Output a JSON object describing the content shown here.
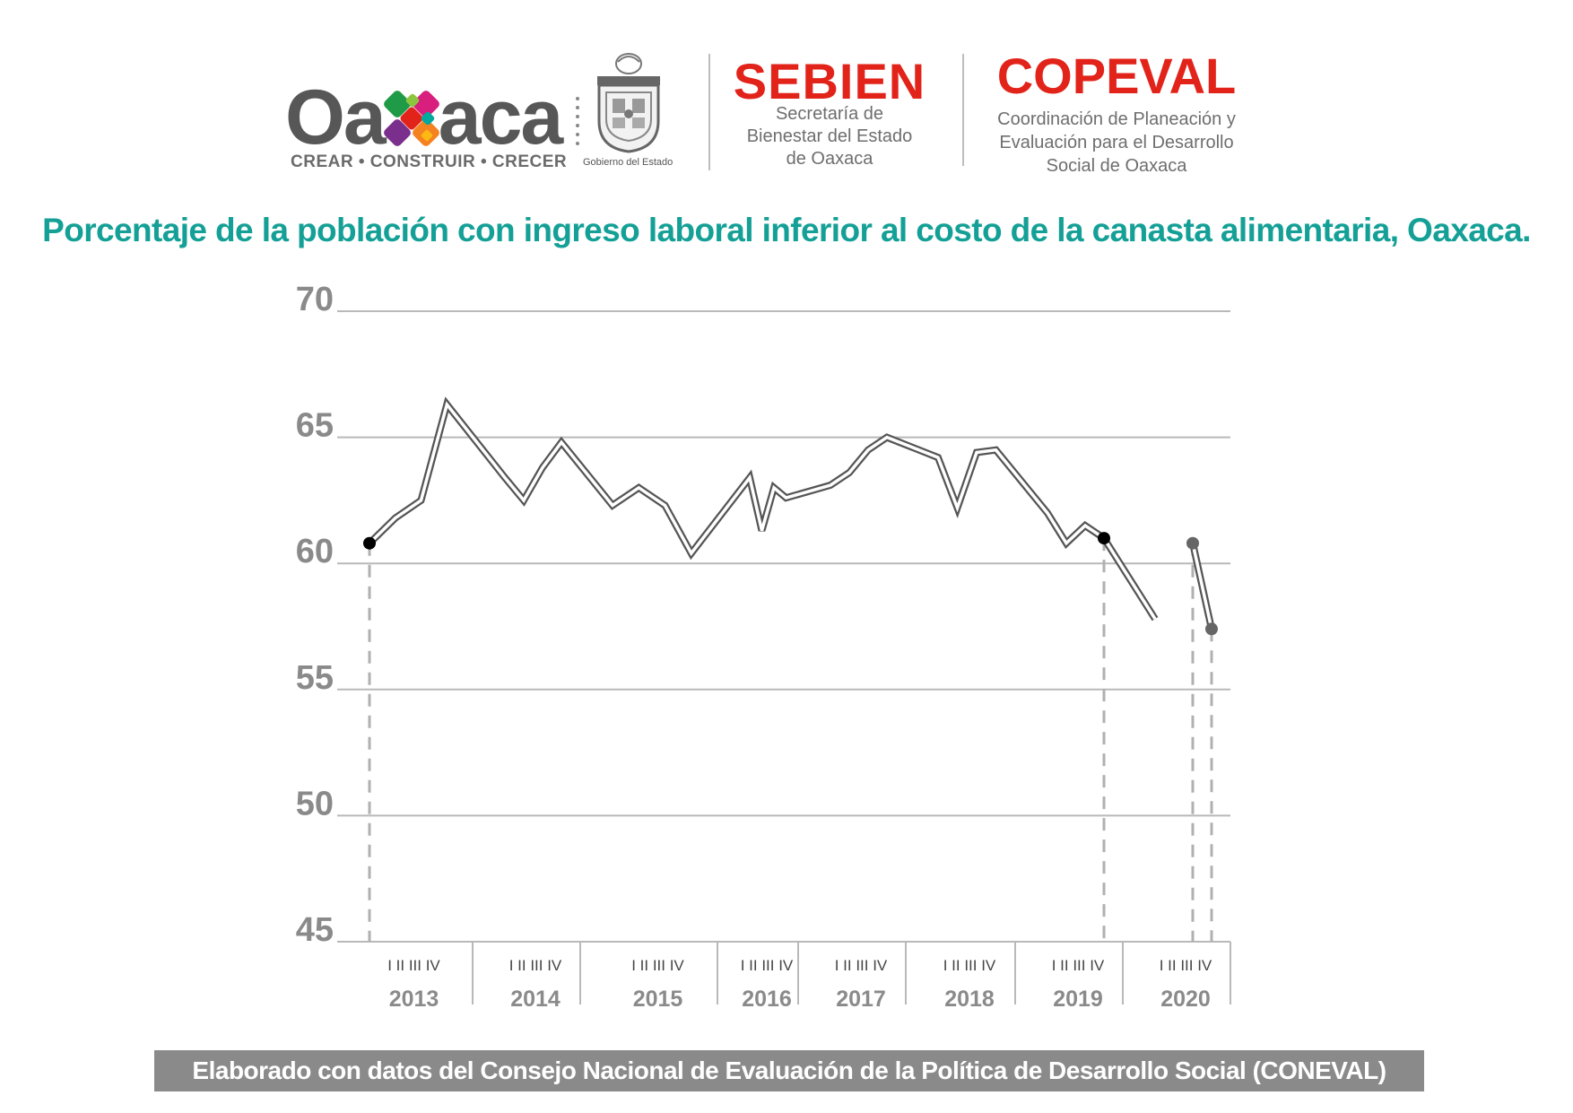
{
  "header": {
    "oaxaca_logo": {
      "word": "Oaxaca",
      "slogan": "CREAR • CONSTRUIR • CRECER"
    },
    "gobierno_caption": "Gobierno del Estado",
    "sebien": {
      "name": "SEBIEN",
      "subtitle_lines": [
        "Secretaría de",
        "Bienestar del Estado",
        "de Oaxaca"
      ]
    },
    "copeval": {
      "name": "COPEVAL",
      "subtitle_lines": [
        "Coordinación de Planeación y",
        "Evaluación para el Desarrollo",
        "Social de Oaxaca"
      ]
    }
  },
  "colors": {
    "title": "#14a096",
    "brand_red": "#e2231a",
    "grid": "#b9b9b9",
    "axis_text": "#8a8a8a",
    "line": "#555555",
    "marker": "#000000",
    "marker_2020": "#666666",
    "dashed": "#b0b0b0",
    "source_bg": "#8a8a8a"
  },
  "chart_data": {
    "type": "line",
    "title": "Porcentaje de la población con ingreso laboral inferior al costo de la canasta alimentaria, Oaxaca.",
    "xlabel": "",
    "ylabel": "",
    "ylim": [
      45,
      70
    ],
    "yticks": [
      45,
      50,
      55,
      60,
      65,
      70
    ],
    "grid": true,
    "quarter_label": "I II III IV",
    "years": [
      "2013",
      "2014",
      "2015",
      "2016",
      "2017",
      "2018",
      "2019",
      "2020"
    ],
    "series": [
      {
        "segment": "2013-2019",
        "x": [
          "2013-I",
          "2013-II",
          "2013-III",
          "2013-IV",
          "2014-I",
          "2014-II",
          "2014-III",
          "2014-IV",
          "2015-I",
          "2015-II",
          "2015-III",
          "2015-IV",
          "2016-I",
          "2016-II",
          "2016-III",
          "2016-IV",
          "2017-I",
          "2017-II",
          "2017-III",
          "2017-IV",
          "2018-I",
          "2018-II",
          "2018-III",
          "2018-IV",
          "2019-I",
          "2019-II",
          "2019-III",
          "2019-IV",
          "2020-I"
        ],
        "values": [
          60.8,
          61.8,
          62.5,
          66.3,
          63.4,
          62.5,
          63.8,
          64.8,
          62.3,
          63.0,
          62.3,
          60.4,
          63.4,
          61.3,
          63.0,
          62.6,
          63.1,
          63.6,
          64.5,
          65.0,
          64.2,
          62.2,
          64.4,
          64.5,
          62.0,
          60.8,
          61.5,
          61.0,
          57.8
        ],
        "highlight": [
          "2013-I",
          "2019-IV"
        ]
      },
      {
        "segment": "2020",
        "x": [
          "2020-III",
          "2020-IV"
        ],
        "values": [
          60.8,
          57.4
        ],
        "highlight": [
          "2020-III",
          "2020-IV"
        ]
      }
    ]
  },
  "source_text": "Elaborado con datos del Consejo Nacional de Evaluación de la Política de Desarrollo Social (CONEVAL)"
}
